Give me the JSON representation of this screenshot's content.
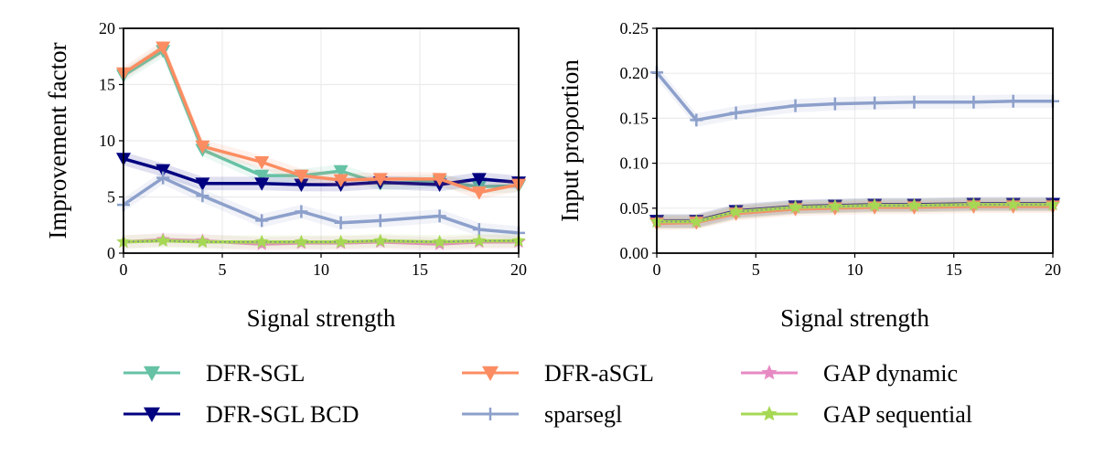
{
  "chart_data": [
    {
      "type": "line",
      "xlabel": "Signal strength",
      "ylabel": "Improvement factor",
      "xlim": [
        0,
        20
      ],
      "ylim": [
        0,
        20
      ],
      "xticks": [
        0,
        5,
        10,
        15,
        20
      ],
      "yticks": [
        0,
        5,
        10,
        15,
        20
      ],
      "grid": true,
      "x": [
        0,
        2,
        4,
        7,
        9,
        11,
        13,
        16,
        18,
        20
      ],
      "series": [
        {
          "name": "DFR-SGL",
          "color": "#66c2a5",
          "marker": "triangle-down",
          "values": [
            15.8,
            18.0,
            9.2,
            6.9,
            6.9,
            7.3,
            6.2,
            6.4,
            5.9,
            6.0
          ]
        },
        {
          "name": "DFR-SGL BCD",
          "color": "#000080",
          "marker": "triangle-down",
          "values": [
            8.4,
            7.4,
            6.2,
            6.2,
            6.1,
            6.1,
            6.3,
            6.1,
            6.6,
            6.3
          ]
        },
        {
          "name": "DFR-aSGL",
          "color": "#fc8d62",
          "marker": "triangle-down",
          "values": [
            16.0,
            18.3,
            9.5,
            8.1,
            6.9,
            6.5,
            6.6,
            6.6,
            5.4,
            6.1
          ]
        },
        {
          "name": "sparsegl",
          "color": "#8da0cb",
          "marker": "plus",
          "values": [
            4.3,
            6.7,
            5.1,
            2.9,
            3.7,
            2.7,
            2.9,
            3.3,
            2.1,
            1.8
          ]
        },
        {
          "name": "GAP dynamic",
          "color": "#e78ac3",
          "marker": "star",
          "values": [
            1.0,
            1.2,
            1.1,
            0.8,
            0.9,
            0.9,
            1.0,
            0.8,
            1.0,
            1.0
          ]
        },
        {
          "name": "GAP sequential",
          "color": "#a6d854",
          "marker": "star",
          "values": [
            1.0,
            1.1,
            1.0,
            1.0,
            1.0,
            1.0,
            1.1,
            1.0,
            1.1,
            1.1
          ]
        }
      ]
    },
    {
      "type": "line",
      "xlabel": "Signal strength",
      "ylabel": "Input proportion",
      "xlim": [
        0,
        20
      ],
      "ylim": [
        0,
        0.25
      ],
      "xticks": [
        0,
        5,
        10,
        15,
        20
      ],
      "yticks": [
        0.0,
        0.05,
        0.1,
        0.15,
        0.2,
        0.25
      ],
      "grid": true,
      "x": [
        0,
        2,
        4,
        7,
        9,
        11,
        13,
        16,
        18,
        20
      ],
      "series": [
        {
          "name": "DFR-SGL",
          "color": "#66c2a5",
          "marker": "triangle-down",
          "values": [
            0.035,
            0.035,
            0.045,
            0.051,
            0.052,
            0.053,
            0.053,
            0.054,
            0.054,
            0.054
          ]
        },
        {
          "name": "DFR-SGL BCD",
          "color": "#000080",
          "marker": "triangle-down",
          "values": [
            0.036,
            0.036,
            0.047,
            0.052,
            0.053,
            0.054,
            0.054,
            0.055,
            0.055,
            0.055
          ]
        },
        {
          "name": "DFR-aSGL",
          "color": "#fc8d62",
          "marker": "triangle-down",
          "values": [
            0.033,
            0.034,
            0.044,
            0.049,
            0.05,
            0.051,
            0.051,
            0.052,
            0.052,
            0.052
          ]
        },
        {
          "name": "sparsegl",
          "color": "#8da0cb",
          "marker": "plus",
          "values": [
            0.201,
            0.148,
            0.156,
            0.164,
            0.166,
            0.167,
            0.168,
            0.168,
            0.169,
            0.169
          ]
        },
        {
          "name": "GAP dynamic",
          "color": "#e78ac3",
          "marker": "star",
          "values": [
            0.035,
            0.035,
            0.046,
            0.051,
            0.052,
            0.053,
            0.053,
            0.054,
            0.054,
            0.054
          ]
        },
        {
          "name": "GAP sequential",
          "color": "#a6d854",
          "marker": "star",
          "values": [
            0.035,
            0.035,
            0.046,
            0.051,
            0.052,
            0.053,
            0.053,
            0.054,
            0.054,
            0.054
          ]
        }
      ]
    }
  ],
  "legend": {
    "placement": "bottom",
    "columns": 3
  }
}
